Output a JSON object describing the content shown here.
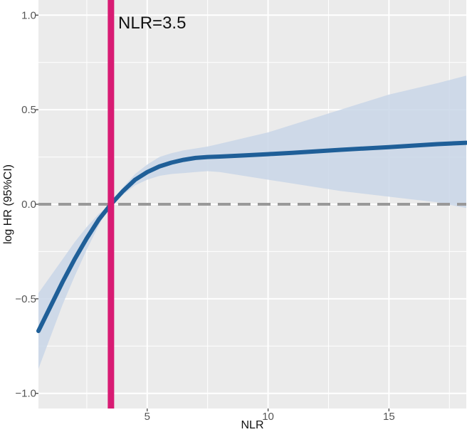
{
  "chart_data": {
    "type": "line",
    "xlabel": "NLR",
    "ylabel": "log HR (95%CI)",
    "xlim": [
      0.5,
      18.2
    ],
    "ylim": [
      -1.08,
      1.08
    ],
    "x_ticks": [
      5,
      10,
      15
    ],
    "x_tick_labels": [
      "5",
      "10",
      "15"
    ],
    "x_minor_gridlines": [
      2.5,
      7.5,
      12.5,
      17.5
    ],
    "y_ticks": [
      -1.0,
      -0.5,
      0.0,
      0.5,
      1.0
    ],
    "y_tick_labels": [
      "−1.0",
      "−0.5",
      "0.0",
      "0.5",
      "1.0"
    ],
    "y_minor_gridlines": [
      -0.75,
      -0.25,
      0.25,
      0.75
    ],
    "grid": true,
    "series": [
      {
        "x": [
          0.5,
          1.0,
          1.5,
          2.0,
          2.5,
          3.0,
          3.5,
          4.0,
          4.5,
          5.0,
          5.5,
          6.0,
          6.5,
          7.0,
          7.5,
          8.0,
          9.0,
          10.0,
          11.0,
          12.0,
          13.0,
          14.0,
          15.0,
          16.0,
          17.0,
          18.2
        ],
        "y": [
          -0.67,
          -0.54,
          -0.41,
          -0.29,
          -0.18,
          -0.08,
          0.0,
          0.07,
          0.13,
          0.17,
          0.2,
          0.22,
          0.235,
          0.245,
          0.25,
          0.252,
          0.258,
          0.265,
          0.272,
          0.28,
          0.288,
          0.295,
          0.302,
          0.31,
          0.318,
          0.325
        ],
        "lower": [
          -0.87,
          -0.7,
          -0.53,
          -0.38,
          -0.24,
          -0.11,
          0.0,
          0.05,
          0.1,
          0.13,
          0.15,
          0.16,
          0.165,
          0.17,
          0.175,
          0.17,
          0.15,
          0.13,
          0.11,
          0.09,
          0.07,
          0.055,
          0.04,
          0.025,
          0.01,
          -0.02
        ],
        "upper": [
          -0.47,
          -0.38,
          -0.29,
          -0.2,
          -0.12,
          -0.05,
          0.0,
          0.09,
          0.16,
          0.21,
          0.25,
          0.27,
          0.285,
          0.295,
          0.305,
          0.32,
          0.35,
          0.38,
          0.42,
          0.46,
          0.5,
          0.54,
          0.58,
          0.61,
          0.64,
          0.68
        ],
        "line_color": "#1f5f98",
        "band_color": "#c9d6e8"
      }
    ],
    "reference_lines": [
      {
        "axis": "y",
        "value": 0.0,
        "style": "dashed",
        "color": "#999999"
      },
      {
        "axis": "x",
        "value": 3.5,
        "style": "solid",
        "color": "#d81b73"
      }
    ],
    "annotations": [
      {
        "text": "NLR=3.5",
        "x": 3.8,
        "y": 0.93
      }
    ],
    "colors": {
      "panel_background": "#ebebeb",
      "gridline": "#ffffff",
      "tick_mark": "#333333"
    }
  }
}
